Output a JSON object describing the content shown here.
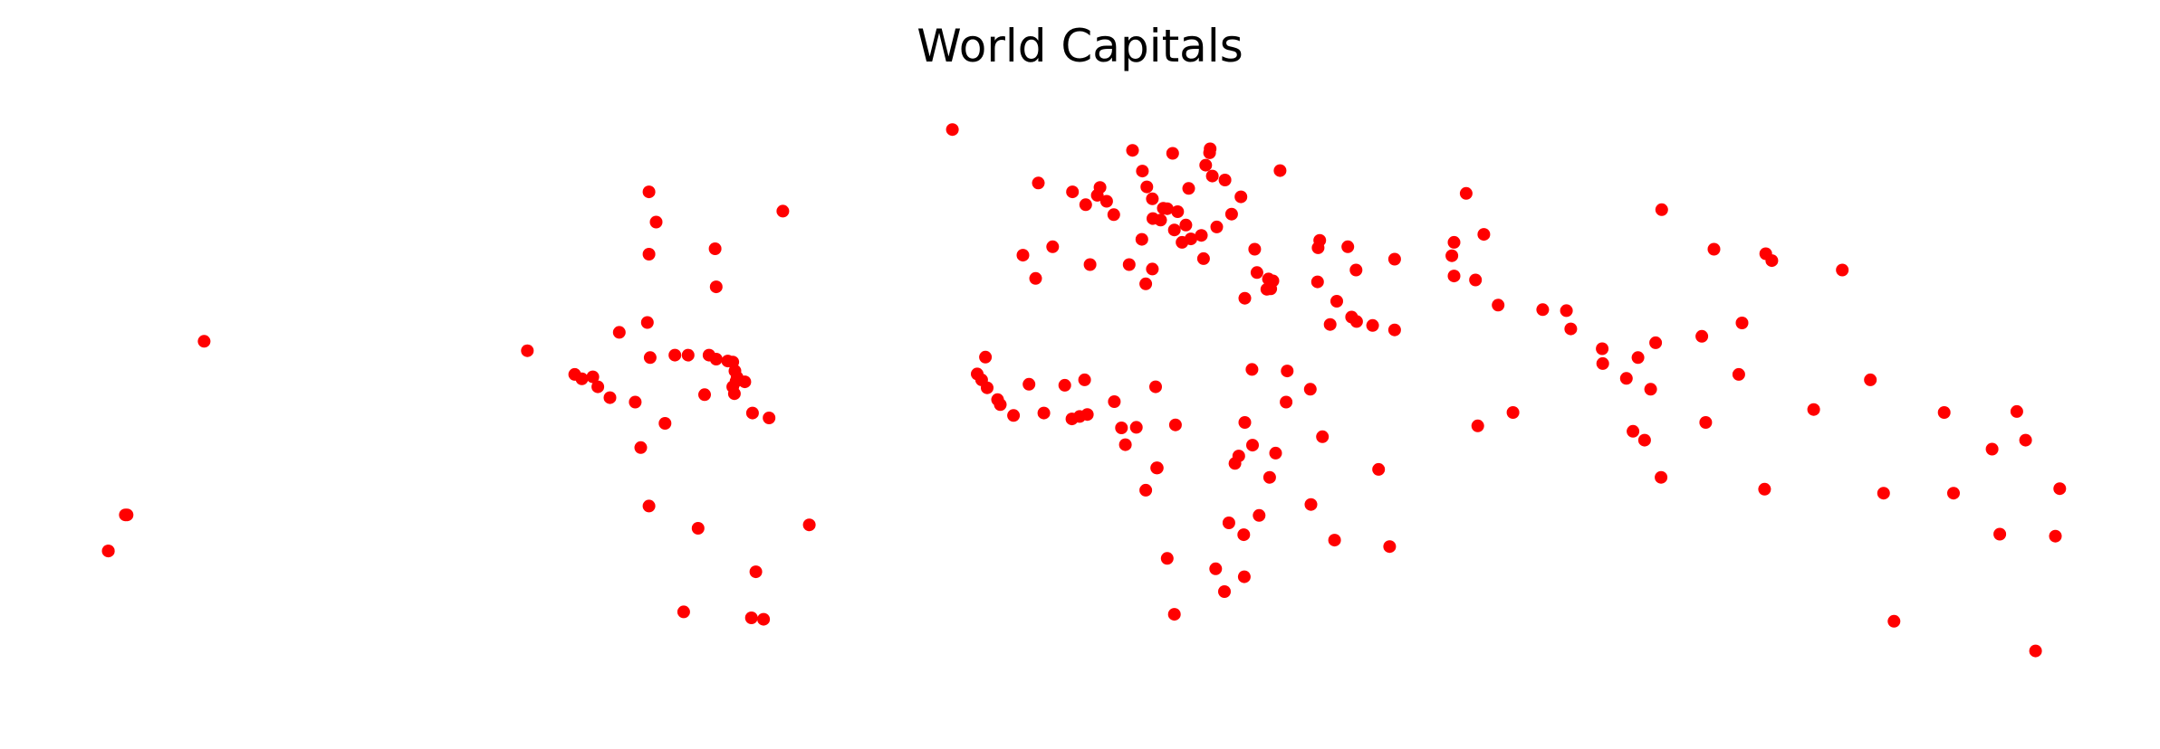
{
  "chart_data": {
    "type": "scatter",
    "title": "World Capitals",
    "xlabel": "",
    "ylabel": "",
    "axes_visible": false,
    "grid": false,
    "marker_color": "#ff0000",
    "xlim": [
      -185,
      190
    ],
    "ylim": [
      -56,
      72
    ],
    "points": [
      [
        -175.2,
        -21.1
      ],
      [
        -171.8,
        -13.8
      ],
      [
        -99.1,
        19.4
      ],
      [
        -90.5,
        14.6
      ],
      [
        -89.2,
        13.7
      ],
      [
        -87.2,
        14.1
      ],
      [
        -86.3,
        12.1
      ],
      [
        -84.1,
        9.9
      ],
      [
        -79.5,
        9.0
      ],
      [
        -77.0,
        -12.0
      ],
      [
        -78.5,
        -0.2
      ],
      [
        -74.1,
        4.7
      ],
      [
        -66.9,
        10.5
      ],
      [
        -58.2,
        6.8
      ],
      [
        -55.2,
        5.8
      ],
      [
        -58.4,
        -34.6
      ],
      [
        -57.6,
        -25.3
      ],
      [
        -56.2,
        -34.9
      ],
      [
        -47.9,
        -15.8
      ],
      [
        -68.1,
        -16.5
      ],
      [
        -70.7,
        -33.4
      ],
      [
        -77.3,
        25.1
      ],
      [
        -82.4,
        23.1
      ],
      [
        -76.8,
        18.0
      ],
      [
        -72.3,
        18.5
      ],
      [
        -69.9,
        18.5
      ],
      [
        -66.1,
        18.5
      ],
      [
        -64.8,
        17.7
      ],
      [
        -61.8,
        17.1
      ],
      [
        -61.4,
        15.3
      ],
      [
        -61.0,
        14.0
      ],
      [
        -61.2,
        13.2
      ],
      [
        -59.6,
        13.1
      ],
      [
        -61.8,
        12.1
      ],
      [
        -61.5,
        10.7
      ],
      [
        -62.7,
        17.3
      ],
      [
        -77.0,
        38.9
      ],
      [
        -75.7,
        45.4
      ],
      [
        -52.7,
        47.6
      ],
      [
        -64.8,
        32.3
      ],
      [
        -77.0,
        51.5
      ],
      [
        -65.0,
        40.0
      ],
      [
        -21.9,
        64.1
      ],
      [
        -17.4,
        14.7
      ],
      [
        -16.6,
        13.5
      ],
      [
        -15.6,
        11.9
      ],
      [
        -13.7,
        9.5
      ],
      [
        -13.2,
        8.5
      ],
      [
        -10.8,
        6.3
      ],
      [
        -5.3,
        6.8
      ],
      [
        -1.5,
        12.4
      ],
      [
        -0.2,
        5.6
      ],
      [
        1.2,
        6.1
      ],
      [
        2.6,
        6.5
      ],
      [
        2.1,
        13.5
      ],
      [
        7.5,
        9.1
      ],
      [
        11.5,
        3.9
      ],
      [
        8.8,
        3.8
      ],
      [
        9.5,
        0.4
      ],
      [
        15.3,
        -4.3
      ],
      [
        15.2,
        -4.3
      ],
      [
        13.2,
        -8.8
      ],
      [
        17.1,
        -22.6
      ],
      [
        18.4,
        -33.9
      ],
      [
        25.9,
        -24.7
      ],
      [
        31.0,
        -17.8
      ],
      [
        28.3,
        -15.4
      ],
      [
        33.8,
        -13.9
      ],
      [
        35.7,
        -6.2
      ],
      [
        32.6,
        0.3
      ],
      [
        30.1,
        -1.9
      ],
      [
        29.4,
        -3.4
      ],
      [
        36.8,
        -1.3
      ],
      [
        38.7,
        9.0
      ],
      [
        45.3,
        2.0
      ],
      [
        43.1,
        11.6
      ],
      [
        38.9,
        15.3
      ],
      [
        32.5,
        15.6
      ],
      [
        31.2,
        4.9
      ],
      [
        18.6,
        4.4
      ],
      [
        15.0,
        12.1
      ],
      [
        31.2,
        30.0
      ],
      [
        13.2,
        32.9
      ],
      [
        10.2,
        36.8
      ],
      [
        3.1,
        36.8
      ],
      [
        -6.8,
        34.0
      ],
      [
        -15.9,
        18.1
      ],
      [
        -8.0,
        12.6
      ],
      [
        47.5,
        -18.9
      ],
      [
        57.5,
        -20.2
      ],
      [
        55.5,
        -4.6
      ],
      [
        43.2,
        -11.7
      ],
      [
        31.1,
        -26.3
      ],
      [
        27.5,
        -29.3
      ],
      [
        -9.1,
        38.7
      ],
      [
        -3.7,
        40.4
      ],
      [
        2.3,
        48.9
      ],
      [
        -0.1,
        51.5
      ],
      [
        -6.3,
        53.3
      ],
      [
        4.9,
        52.4
      ],
      [
        4.4,
        50.8
      ],
      [
        6.1,
        49.6
      ],
      [
        13.4,
        52.5
      ],
      [
        7.4,
        46.9
      ],
      [
        12.5,
        41.9
      ],
      [
        14.4,
        35.9
      ],
      [
        16.4,
        48.2
      ],
      [
        14.4,
        50.1
      ],
      [
        17.1,
        48.1
      ],
      [
        19.0,
        47.5
      ],
      [
        21.0,
        52.2
      ],
      [
        12.6,
        55.7
      ],
      [
        10.8,
        59.9
      ],
      [
        18.1,
        59.3
      ],
      [
        24.9,
        60.2
      ],
      [
        24.1,
        56.9
      ],
      [
        24.8,
        59.4
      ],
      [
        25.3,
        54.7
      ],
      [
        27.6,
        53.9
      ],
      [
        30.5,
        50.5
      ],
      [
        28.8,
        47.0
      ],
      [
        26.1,
        44.4
      ],
      [
        23.3,
        42.7
      ],
      [
        21.4,
        42.0
      ],
      [
        20.5,
        44.8
      ],
      [
        19.8,
        41.3
      ],
      [
        23.7,
        38.0
      ],
      [
        18.4,
        43.8
      ],
      [
        15.9,
        45.8
      ],
      [
        14.5,
        46.1
      ],
      [
        37.6,
        55.8
      ],
      [
        33.0,
        39.9
      ],
      [
        33.4,
        35.2
      ],
      [
        35.5,
        33.9
      ],
      [
        36.3,
        33.5
      ],
      [
        35.9,
        31.9
      ],
      [
        35.2,
        31.8
      ],
      [
        44.4,
        33.3
      ],
      [
        44.5,
        40.2
      ],
      [
        44.8,
        41.7
      ],
      [
        49.9,
        40.4
      ],
      [
        51.4,
        35.7
      ],
      [
        46.7,
        24.7
      ],
      [
        50.6,
        26.2
      ],
      [
        51.5,
        25.3
      ],
      [
        54.4,
        24.5
      ],
      [
        58.4,
        23.6
      ],
      [
        47.9,
        29.4
      ],
      [
        69.2,
        34.5
      ],
      [
        73.1,
        33.7
      ],
      [
        71.4,
        51.2
      ],
      [
        74.6,
        42.9
      ],
      [
        68.8,
        38.6
      ],
      [
        69.2,
        41.3
      ],
      [
        58.4,
        37.9
      ],
      [
        77.2,
        28.6
      ],
      [
        85.3,
        27.7
      ],
      [
        89.6,
        27.5
      ],
      [
        90.4,
        23.8
      ],
      [
        96.2,
        16.8
      ],
      [
        96.1,
        19.8
      ],
      [
        100.5,
        13.8
      ],
      [
        102.6,
        18.0
      ],
      [
        104.9,
        11.6
      ],
      [
        105.8,
        21.0
      ],
      [
        106.9,
        47.9
      ],
      [
        116.4,
        39.9
      ],
      [
        121.5,
        25.0
      ],
      [
        126.9,
        37.6
      ],
      [
        125.8,
        39.0
      ],
      [
        139.7,
        35.7
      ],
      [
        114.2,
        22.3
      ],
      [
        120.9,
        14.6
      ],
      [
        101.7,
        3.1
      ],
      [
        103.8,
        1.3
      ],
      [
        114.9,
        4.9
      ],
      [
        106.8,
        -6.2
      ],
      [
        125.6,
        -8.6
      ],
      [
        73.5,
        4.2
      ],
      [
        79.9,
        6.9
      ],
      [
        147.2,
        -9.4
      ],
      [
        149.1,
        -35.3
      ],
      [
        174.8,
        -41.3
      ],
      [
        159.9,
        -9.4
      ],
      [
        166.9,
        -0.5
      ],
      [
        168.3,
        -17.7
      ],
      [
        178.4,
        -18.1
      ],
      [
        173.0,
        1.3
      ],
      [
        171.4,
        7.1
      ],
      [
        158.2,
        6.9
      ],
      [
        134.5,
        7.5
      ],
      [
        -175.2,
        -21.1
      ],
      [
        -172.1,
        -13.8
      ],
      [
        179.2,
        -8.5
      ],
      [
        144.8,
        13.5
      ],
      [
        -157.8,
        21.3
      ]
    ]
  }
}
